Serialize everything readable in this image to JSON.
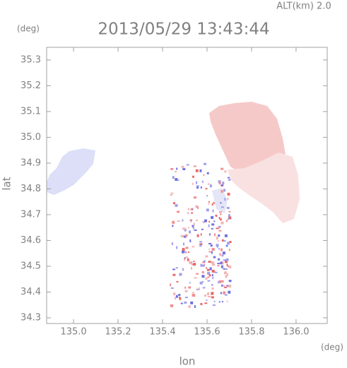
{
  "chart_data": {
    "type": "map",
    "title": "2013/05/29 13:43:44",
    "subtitle": "ALT(km) 2.0",
    "x_label": "lon",
    "y_label": "lat",
    "x_unit": "(deg)",
    "y_unit": "(deg)",
    "xlim": [
      134.879,
      136.14
    ],
    "ylim": [
      34.278,
      35.349
    ],
    "xticks": [
      {
        "value": 135,
        "label": "135.0"
      },
      135.2,
      135.4,
      135.6,
      135.8,
      {
        "value": 136,
        "label": "136.0"
      }
    ],
    "yticks": [
      34.3,
      34.4,
      34.5,
      34.6,
      34.7,
      34.8,
      34.9,
      {
        "value": 35,
        "label": "35.0"
      },
      35.1,
      35.2,
      35.3
    ]
  }
}
